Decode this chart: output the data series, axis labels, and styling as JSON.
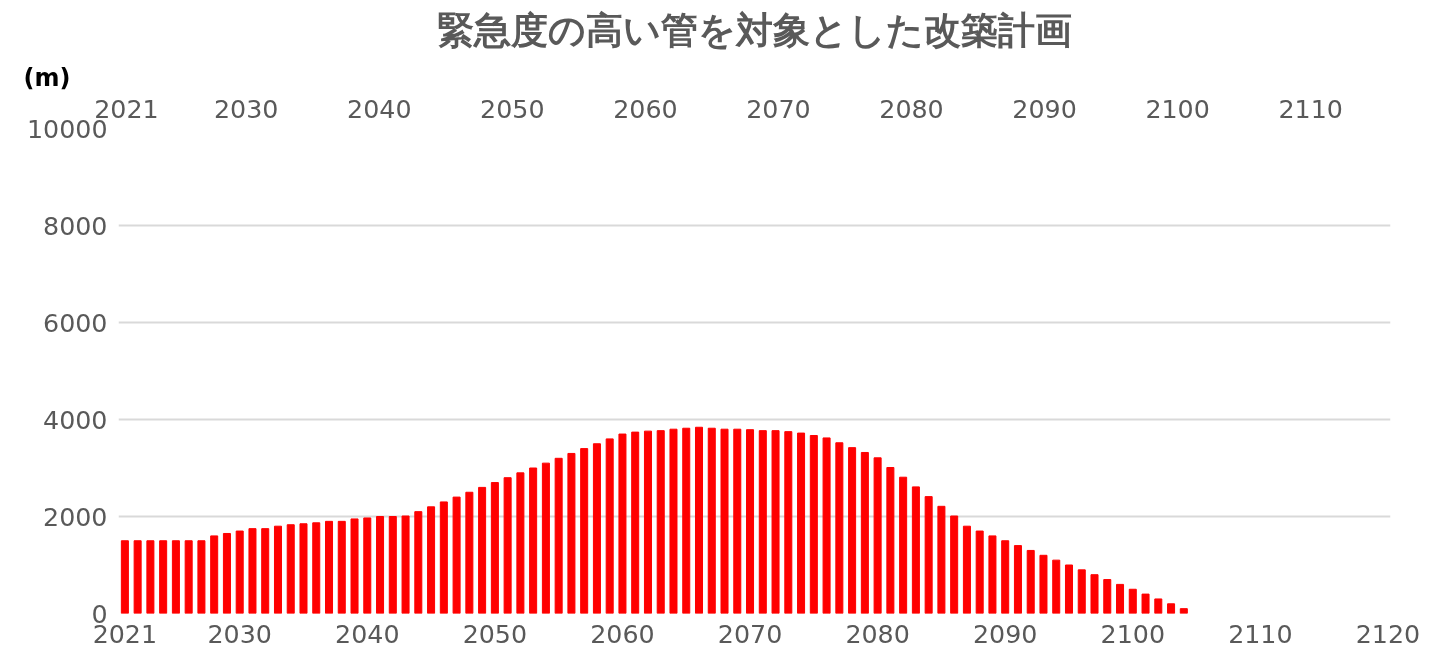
{
  "chart_data": {
    "type": "bar",
    "title": "緊急度の高い管を対象とした改築計画",
    "ylabel": "(m)",
    "x": [
      2021,
      2022,
      2023,
      2024,
      2025,
      2026,
      2027,
      2028,
      2029,
      2030,
      2031,
      2032,
      2033,
      2034,
      2035,
      2036,
      2037,
      2038,
      2039,
      2040,
      2041,
      2042,
      2043,
      2044,
      2045,
      2046,
      2047,
      2048,
      2049,
      2050,
      2051,
      2052,
      2053,
      2054,
      2055,
      2056,
      2057,
      2058,
      2059,
      2060,
      2061,
      2062,
      2063,
      2064,
      2065,
      2066,
      2067,
      2068,
      2069,
      2070,
      2071,
      2072,
      2073,
      2074,
      2075,
      2076,
      2077,
      2078,
      2079,
      2080,
      2081,
      2082,
      2083,
      2084,
      2085,
      2086,
      2087,
      2088,
      2089,
      2090,
      2091,
      2092,
      2093,
      2094,
      2095,
      2096,
      2097,
      2098,
      2099,
      2100,
      2101,
      2102,
      2103,
      2104
    ],
    "values": [
      1500,
      1500,
      1500,
      1500,
      1500,
      1500,
      1500,
      1600,
      1650,
      1700,
      1750,
      1750,
      1800,
      1830,
      1850,
      1870,
      1900,
      1900,
      1950,
      1970,
      2000,
      2000,
      2010,
      2100,
      2200,
      2300,
      2400,
      2500,
      2600,
      2700,
      2800,
      2900,
      3000,
      3100,
      3200,
      3300,
      3400,
      3500,
      3600,
      3700,
      3740,
      3760,
      3770,
      3800,
      3820,
      3840,
      3820,
      3800,
      3800,
      3790,
      3770,
      3770,
      3750,
      3720,
      3670,
      3620,
      3520,
      3420,
      3320,
      3210,
      3010,
      2810,
      2610,
      2410,
      2210,
      2010,
      1800,
      1700,
      1600,
      1500,
      1400,
      1300,
      1200,
      1100,
      1000,
      900,
      800,
      700,
      600,
      500,
      400,
      300,
      200,
      100
    ],
    "color": "#ff0000",
    "xlim": [
      2020.5,
      2120.2
    ],
    "xticks": [
      2021,
      2030,
      2040,
      2050,
      2060,
      2070,
      2080,
      2090,
      2100,
      2110,
      2120
    ],
    "x2lim": [
      2020.4,
      2116
    ],
    "x2ticks": [
      2021,
      2030,
      2040,
      2050,
      2060,
      2070,
      2080,
      2090,
      2100,
      2110
    ],
    "ylim": [
      0,
      10000
    ],
    "yticks": [
      0,
      2000,
      4000,
      6000,
      8000,
      10000
    ],
    "grid": "y"
  }
}
